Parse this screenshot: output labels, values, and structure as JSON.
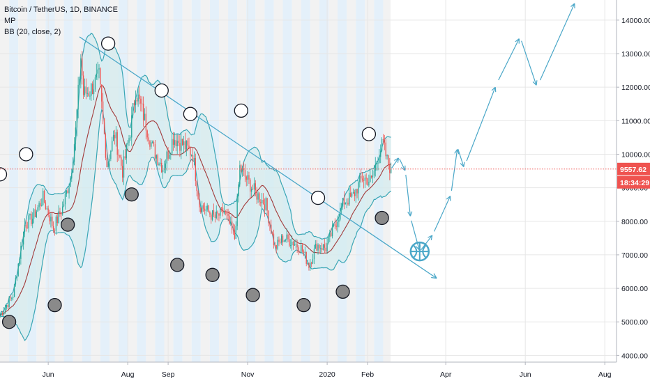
{
  "legend": {
    "title": "Bitcoin / TetherUS, 1D, BINANCE",
    "line2": "MP",
    "line3": "BB (20, close, 2)"
  },
  "colors": {
    "up": "#26a69a",
    "down": "#ef5350",
    "band": "#3aa6b5",
    "band_fill": "#d3ebee",
    "basis": "#a23a3a",
    "trend": "#4aa7c8",
    "projection": "#4aa7c8",
    "price_line": "#ef5350",
    "tag_price": "#ef5350",
    "tag_timer": "#ef5350",
    "grid": "#e6e6e6",
    "stripe_a": "#f2f2f2",
    "stripe_b": "#e4f0fa"
  },
  "chart_data": {
    "type": "candlestick",
    "symbol": "Bitcoin / TetherUS",
    "interval": "1D",
    "exchange": "BINANCE",
    "y_axis": {
      "range": [
        3800,
        14600
      ],
      "ticks": [
        "4000.00",
        "5000.00",
        "6000.00",
        "7000.00",
        "8000.00",
        "9000.00",
        "10000.00",
        "11000.00",
        "12000.00",
        "13000.00",
        "14000.00"
      ]
    },
    "x_axis": {
      "range": [
        "2019-04-25",
        "2020-08-10"
      ],
      "ticks": [
        {
          "label": "Jun",
          "date": "2019-06-01"
        },
        {
          "label": "Aug",
          "date": "2019-08-01"
        },
        {
          "label": "Sep",
          "date": "2019-09-01"
        },
        {
          "label": "Nov",
          "date": "2019-11-01"
        },
        {
          "label": "2020",
          "date": "2020-01-01"
        },
        {
          "label": "Feb",
          "date": "2020-02-01"
        },
        {
          "label": "Apr",
          "date": "2020-04-01"
        },
        {
          "label": "Jun",
          "date": "2020-06-01"
        },
        {
          "label": "Aug",
          "date": "2020-08-01"
        }
      ]
    },
    "last_price": "9557.62",
    "countdown": "18:34:29",
    "price_path": [
      [
        "2019-04-25",
        5200
      ],
      [
        "2019-05-05",
        5800
      ],
      [
        "2019-05-14",
        7900
      ],
      [
        "2019-05-20",
        8100
      ],
      [
        "2019-05-28",
        8700
      ],
      [
        "2019-06-05",
        7800
      ],
      [
        "2019-06-12",
        8400
      ],
      [
        "2019-06-18",
        9300
      ],
      [
        "2019-06-22",
        10700
      ],
      [
        "2019-06-26",
        12900
      ],
      [
        "2019-06-28",
        11800
      ],
      [
        "2019-07-03",
        11900
      ],
      [
        "2019-07-10",
        12300
      ],
      [
        "2019-07-16",
        9700
      ],
      [
        "2019-07-22",
        10600
      ],
      [
        "2019-07-28",
        9500
      ],
      [
        "2019-08-03",
        10700
      ],
      [
        "2019-08-07",
        11900
      ],
      [
        "2019-08-12",
        11300
      ],
      [
        "2019-08-20",
        10200
      ],
      [
        "2019-08-28",
        9600
      ],
      [
        "2019-09-05",
        10500
      ],
      [
        "2019-09-12",
        10300
      ],
      [
        "2019-09-20",
        10000
      ],
      [
        "2019-09-25",
        8500
      ],
      [
        "2019-10-01",
        8300
      ],
      [
        "2019-10-07",
        8100
      ],
      [
        "2019-10-14",
        8300
      ],
      [
        "2019-10-22",
        7500
      ],
      [
        "2019-10-26",
        9600
      ],
      [
        "2019-11-01",
        9200
      ],
      [
        "2019-11-08",
        8800
      ],
      [
        "2019-11-15",
        8500
      ],
      [
        "2019-11-22",
        7200
      ],
      [
        "2019-11-28",
        7500
      ],
      [
        "2019-12-05",
        7400
      ],
      [
        "2019-12-12",
        7200
      ],
      [
        "2019-12-18",
        6700
      ],
      [
        "2019-12-24",
        7300
      ],
      [
        "2019-12-31",
        7200
      ],
      [
        "2020-01-07",
        7900
      ],
      [
        "2020-01-14",
        8600
      ],
      [
        "2020-01-20",
        8700
      ],
      [
        "2020-01-28",
        9300
      ],
      [
        "2020-02-04",
        9200
      ],
      [
        "2020-02-10",
        10100
      ],
      [
        "2020-02-13",
        10300
      ],
      [
        "2020-02-16",
        9800
      ],
      [
        "2020-02-19",
        9557
      ]
    ],
    "bollinger": {
      "length": 20,
      "source": "close",
      "mult": 2
    },
    "trend_line": {
      "from": [
        "2019-06-25",
        13500
      ],
      "to": [
        "2020-03-25",
        6300
      ]
    },
    "projection_path": [
      [
        "2020-02-19",
        9557
      ],
      [
        "2020-02-25",
        9900
      ],
      [
        "2020-03-01",
        9500
      ],
      [
        "2020-03-05",
        8100
      ],
      [
        "2020-03-12",
        7100
      ],
      [
        "2020-03-22",
        7600
      ],
      [
        "2020-04-05",
        8800
      ],
      [
        "2020-04-10",
        10200
      ],
      [
        "2020-04-15",
        9600
      ],
      [
        "2020-05-10",
        12100
      ],
      [
        "2020-05-28",
        13500
      ],
      [
        "2020-06-10",
        12000
      ],
      [
        "2020-07-10",
        14600
      ]
    ],
    "cycles_open": [
      [
        "2019-04-25",
        9400
      ],
      [
        "2019-05-15",
        10000
      ],
      [
        "2019-07-17",
        13300
      ],
      [
        "2019-08-27",
        11900
      ],
      [
        "2019-09-18",
        11200
      ],
      [
        "2019-10-27",
        11300
      ],
      [
        "2019-12-25",
        8700
      ],
      [
        "2020-02-02",
        10600
      ]
    ],
    "cycles_filled": [
      [
        "2019-05-02",
        5000
      ],
      [
        "2019-06-06",
        5500
      ],
      [
        "2019-06-16",
        7900
      ],
      [
        "2019-08-04",
        8800
      ],
      [
        "2019-09-08",
        6700
      ],
      [
        "2019-10-05",
        6400
      ],
      [
        "2019-11-05",
        5800
      ],
      [
        "2019-12-14",
        5500
      ],
      [
        "2020-01-13",
        5900
      ],
      [
        "2020-02-12",
        8100
      ]
    ]
  }
}
